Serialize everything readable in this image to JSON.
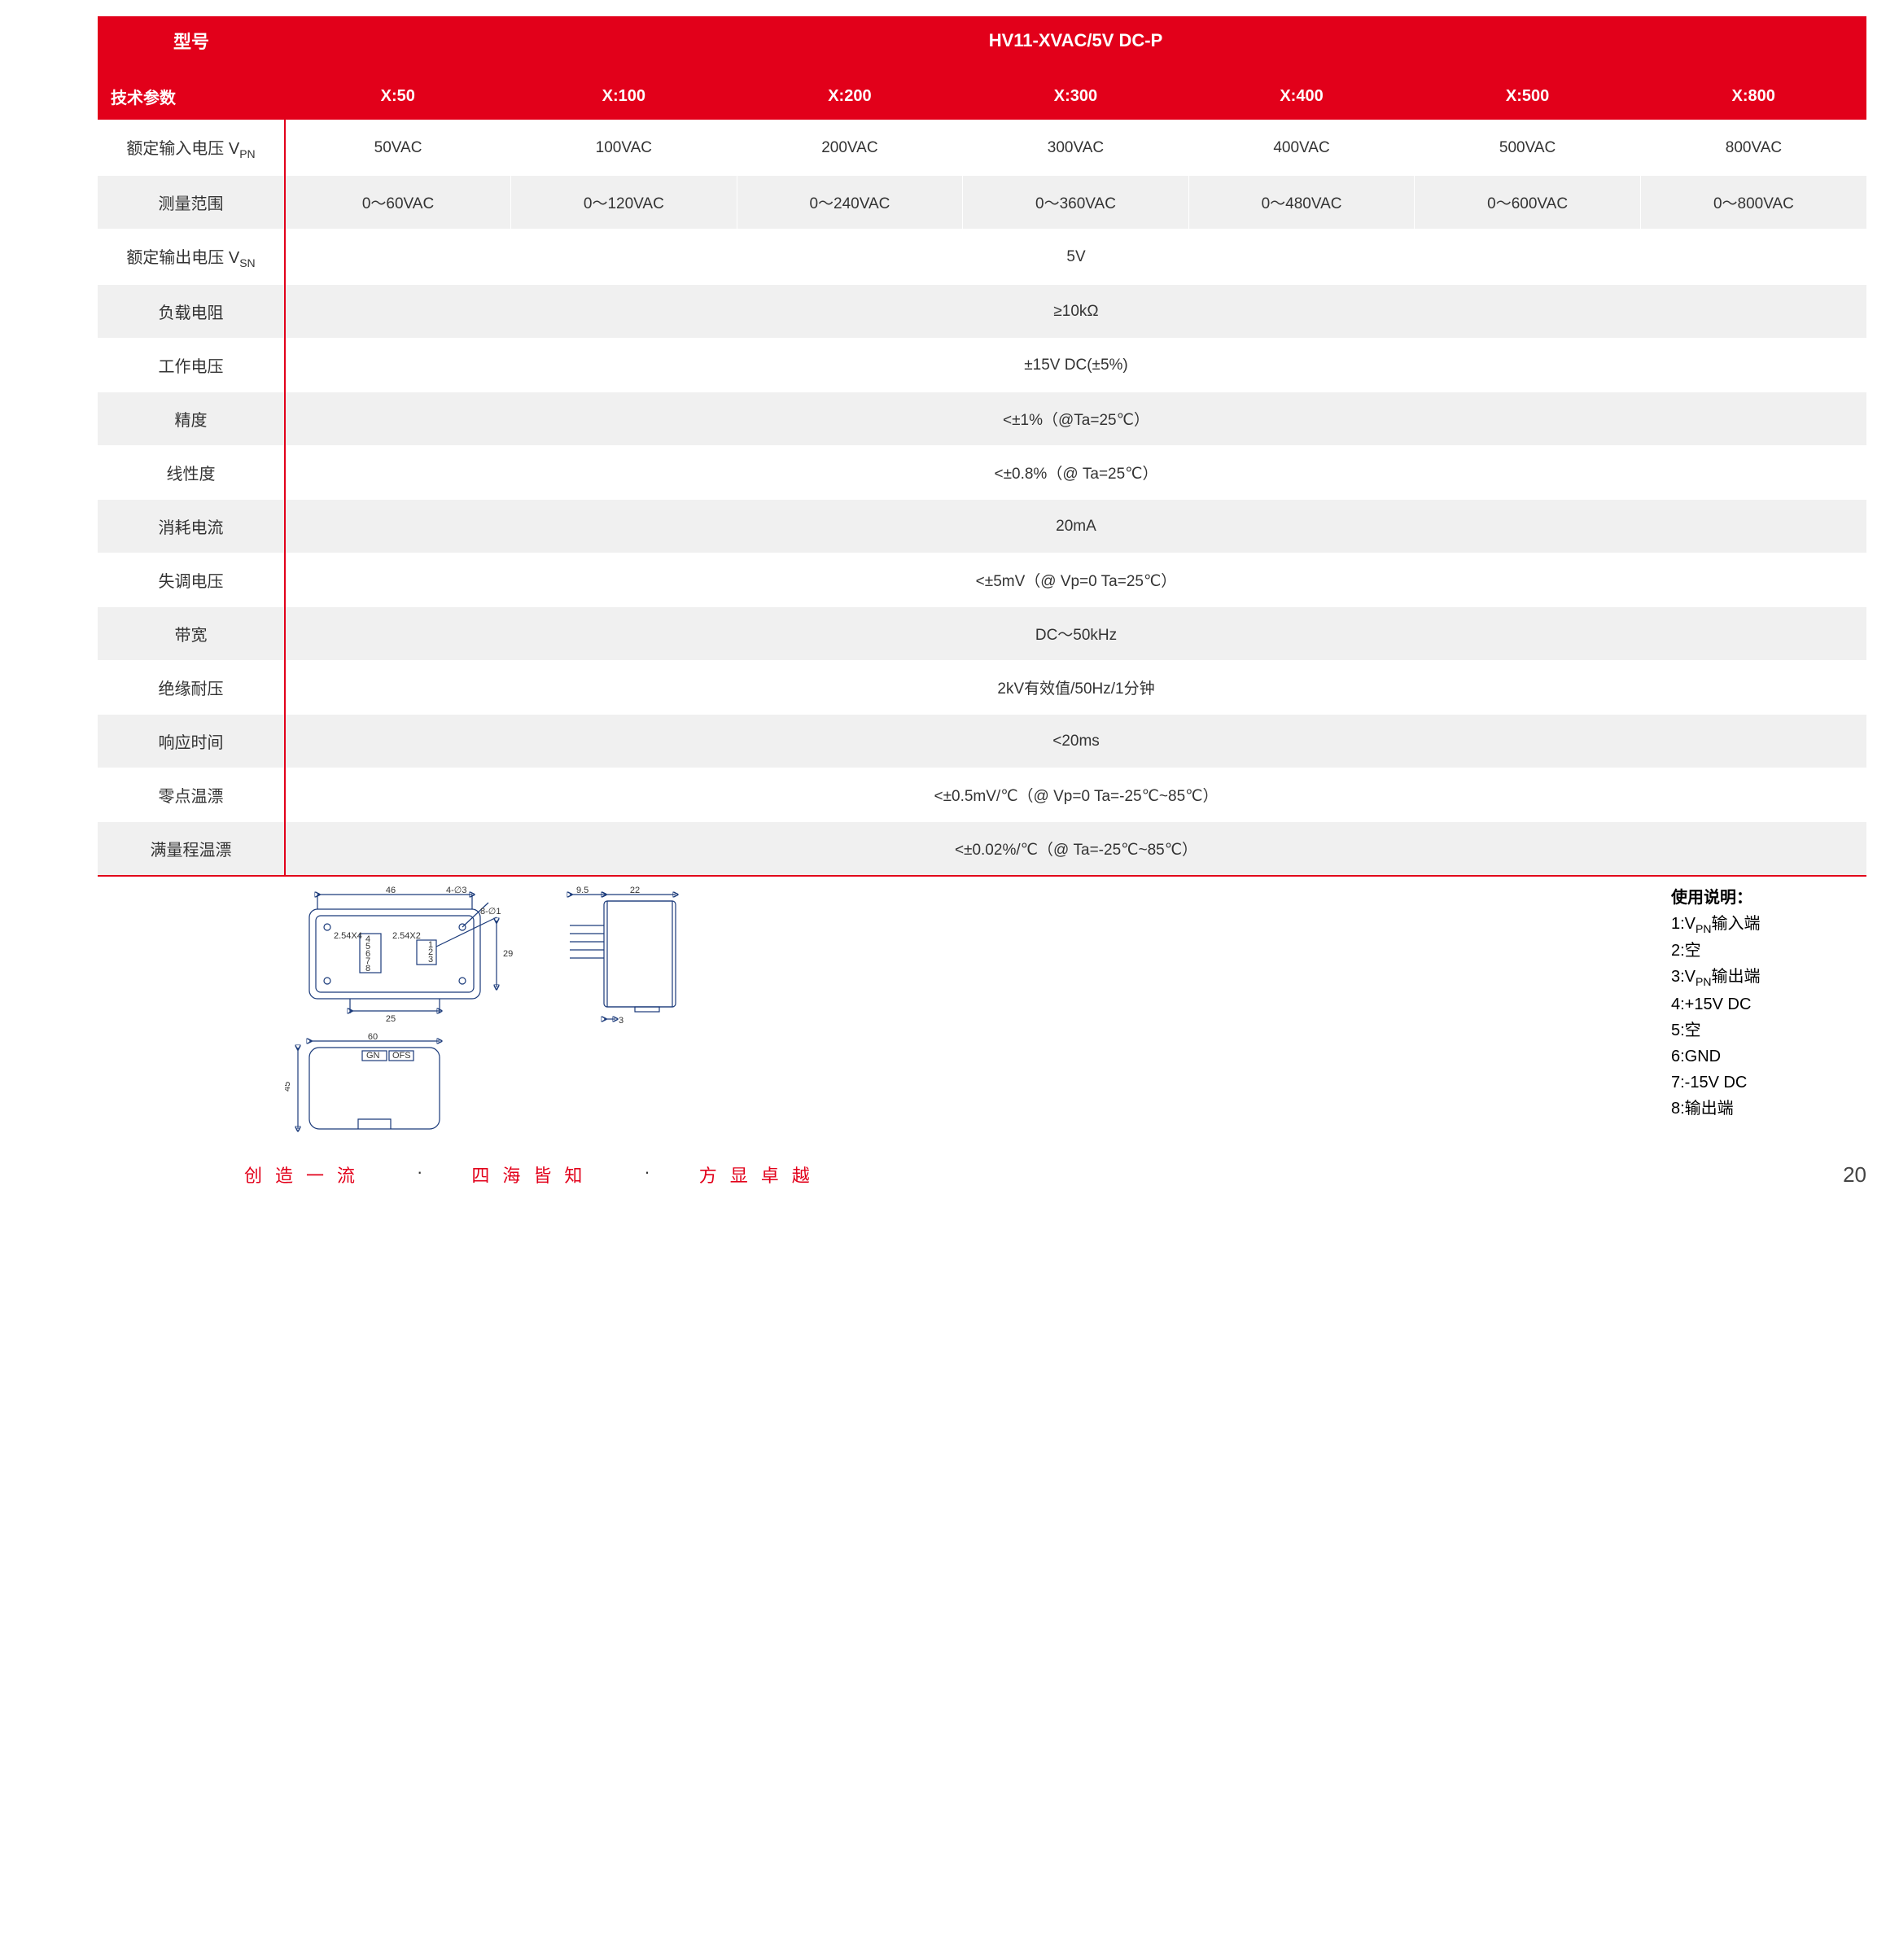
{
  "header": {
    "model_label": "型号",
    "model_value": "HV11-XVAC/5V DC-P",
    "param_header": "技术参数",
    "x_cols": [
      "X:50",
      "X:100",
      "X:200",
      "X:300",
      "X:400",
      "X:500",
      "X:800"
    ]
  },
  "rows": [
    {
      "label_html": "额定输入电压 V<sub class='sub'>PN</sub>",
      "cells": [
        "50VAC",
        "100VAC",
        "200VAC",
        "300VAC",
        "400VAC",
        "500VAC",
        "800VAC"
      ],
      "stripe": false,
      "sep": true
    },
    {
      "label": "测量范围",
      "cells": [
        "0～60VAC",
        "0～120VAC",
        "0～240VAC",
        "0～360VAC",
        "0～480VAC",
        "0～600VAC",
        "0～800VAC"
      ],
      "stripe": true,
      "sep": true
    },
    {
      "label_html": "额定输出电压 V<sub class='sub'>SN</sub>",
      "span": "5V",
      "stripe": false
    },
    {
      "label": "负载电阻",
      "span": "≥10kΩ",
      "stripe": true
    },
    {
      "label": "工作电压",
      "span": "±15V DC(±5%)",
      "stripe": false
    },
    {
      "label": "精度",
      "span": "<±1%（@Ta=25℃）",
      "stripe": true
    },
    {
      "label": "线性度",
      "span": "<±0.8%（@ Ta=25℃）",
      "stripe": false
    },
    {
      "label": "消耗电流",
      "span": "20mA",
      "stripe": true
    },
    {
      "label": "失调电压",
      "span": "<±5mV（@ Vp=0 Ta=25℃）",
      "stripe": false
    },
    {
      "label": "带宽",
      "span": "DC～50kHz",
      "stripe": true
    },
    {
      "label": "绝缘耐压",
      "span": "2kV有效值/50Hz/1分钟",
      "stripe": false
    },
    {
      "label": "响应时间",
      "span": "<20ms",
      "stripe": true
    },
    {
      "label": "零点温漂",
      "span": "<±0.5mV/℃（@ Vp=0 Ta=-25℃~85℃）",
      "stripe": false
    },
    {
      "label": "满量程温漂",
      "span": "<±0.02%/℃（@ Ta=-25℃~85℃）",
      "stripe": true
    }
  ],
  "drawing": {
    "top": {
      "w": 46,
      "d46": "46",
      "d25": "25",
      "d29": "29",
      "d4phi3": "4-∅3",
      "d8phi1": "8-∅1",
      "p254x4": "2.54X4",
      "p254x2": "2.54X2",
      "pins_left": [
        "4",
        "5",
        "6",
        "7",
        "8"
      ],
      "pins_right": [
        "1",
        "2",
        "3"
      ]
    },
    "bottom": {
      "d60": "60",
      "d45": "45",
      "gn": "GN",
      "ofs": "OFS"
    },
    "side": {
      "d95": "9.5",
      "d22": "22",
      "d3": "3"
    }
  },
  "instructions": {
    "title": "使用说明：",
    "lines_html": [
      "1:V<sub class='sub'>PN</sub>输入端",
      "2:空",
      "3:V<sub class='sub'>PN</sub>输出端",
      "4:+15V DC",
      "5:空",
      "6:GND",
      "7:-15V DC",
      "8:输出端"
    ]
  },
  "footer": {
    "g1": "创造一流",
    "dot": "·",
    "g2": "四海皆知",
    "g3": "方显卓越",
    "page": "20"
  },
  "colors": {
    "accent": "#e2001a",
    "stripe": "#f0f0f0",
    "drawing_stroke": "#1a3a7a"
  }
}
